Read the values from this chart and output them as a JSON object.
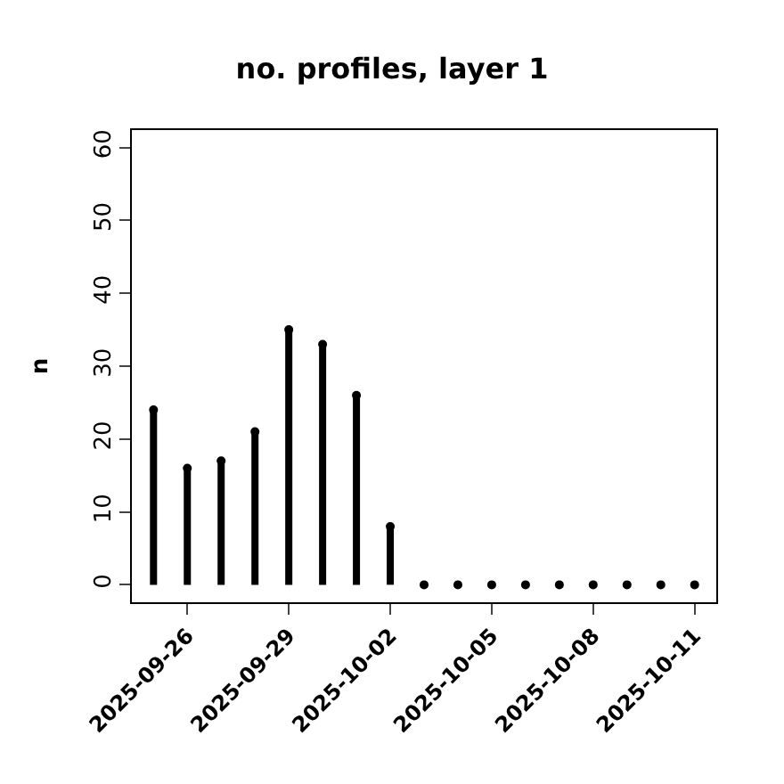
{
  "chart_data": {
    "type": "lollipop",
    "title": "no. profiles, layer 1",
    "ylabel": "n",
    "x": [
      "2025-09-25",
      "2025-09-26",
      "2025-09-27",
      "2025-09-28",
      "2025-09-29",
      "2025-09-30",
      "2025-10-01",
      "2025-10-02",
      "2025-10-03",
      "2025-10-04",
      "2025-10-05",
      "2025-10-06",
      "2025-10-07",
      "2025-10-08",
      "2025-10-09",
      "2025-10-10",
      "2025-10-11"
    ],
    "series": [
      {
        "color": "#000000",
        "values": [
          24,
          16,
          17,
          21,
          35,
          33,
          26,
          8,
          0,
          0,
          0,
          0,
          0,
          0,
          0,
          0,
          0
        ]
      }
    ],
    "xlim": [
      "2025-09-24T08:38",
      "2025-10-11T15:22"
    ],
    "xticks": [
      "2025-09-26",
      "2025-09-29",
      "2025-10-02",
      "2025-10-05",
      "2025-10-08",
      "2025-10-11"
    ],
    "ylim": [
      -2.4,
      62.4
    ],
    "yticks": [
      0,
      10,
      20,
      30,
      40,
      50,
      60
    ],
    "marker": "circle",
    "line_style": "solid"
  }
}
